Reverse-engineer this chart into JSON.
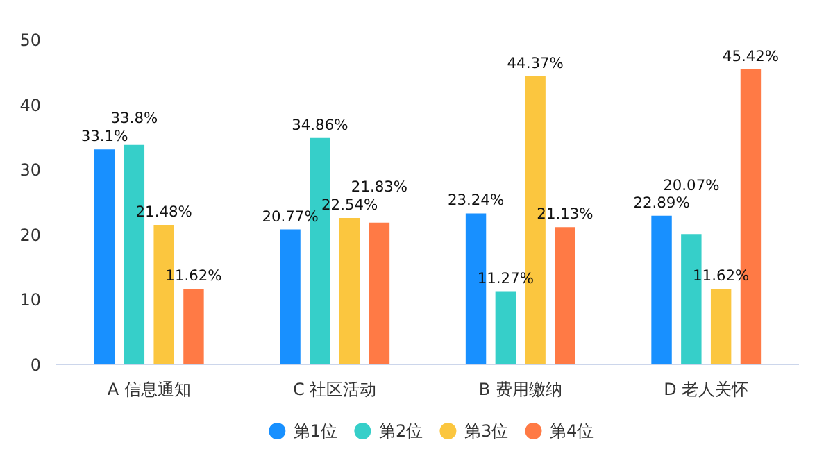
{
  "chart_data": {
    "type": "bar",
    "categories": [
      "A 信息通知",
      "C 社区活动",
      "B 费用缴纳",
      "D 老人关怀"
    ],
    "series": [
      {
        "name": "第1位",
        "color": "#1890ff",
        "values": [
          33.1,
          20.77,
          23.24,
          22.89
        ],
        "value_labels": [
          "33.1%",
          "20.77%",
          "23.24%",
          "22.89%"
        ]
      },
      {
        "name": "第2位",
        "color": "#36cfc9",
        "values": [
          33.8,
          34.86,
          11.27,
          20.07
        ],
        "value_labels": [
          "33.8%",
          "34.86%",
          "11.27%",
          "20.07%"
        ]
      },
      {
        "name": "第3位",
        "color": "#fbc63f",
        "values": [
          21.48,
          22.54,
          44.37,
          11.62
        ],
        "value_labels": [
          "21.48%",
          "22.54%",
          "44.37%",
          "11.62%"
        ]
      },
      {
        "name": "第4位",
        "color": "#ff7a45",
        "values": [
          11.62,
          21.83,
          21.13,
          45.42
        ],
        "value_labels": [
          "11.62%",
          "21.83%",
          "21.13%",
          "45.42%"
        ]
      }
    ],
    "ylim": [
      0,
      50
    ],
    "yticks": [
      0,
      10,
      20,
      30,
      40,
      50
    ],
    "grid": false,
    "legend": "bottom"
  }
}
